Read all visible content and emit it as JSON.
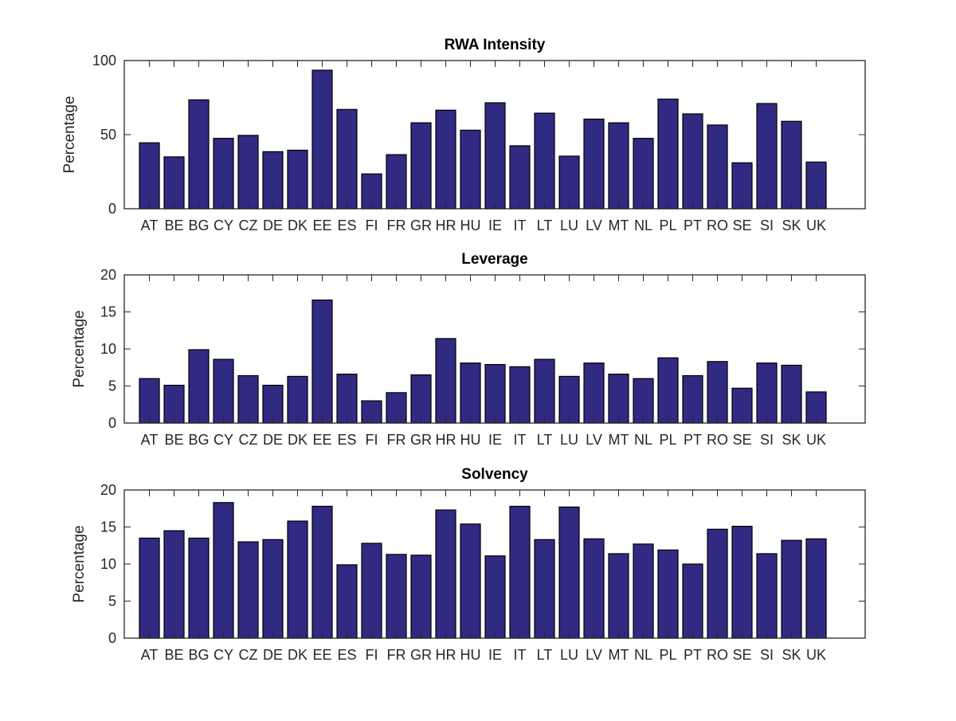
{
  "chart_data": [
    {
      "type": "bar",
      "title": "RWA Intensity",
      "ylabel": "Percentage",
      "xlabel": "",
      "ylim": [
        0,
        100
      ],
      "yticks": [
        0,
        50,
        100
      ],
      "categories": [
        "AT",
        "BE",
        "BG",
        "CY",
        "CZ",
        "DE",
        "DK",
        "EE",
        "ES",
        "FI",
        "FR",
        "GR",
        "HR",
        "HU",
        "IE",
        "IT",
        "LT",
        "LU",
        "LV",
        "MT",
        "NL",
        "PL",
        "PT",
        "RO",
        "SE",
        "SI",
        "SK",
        "UK"
      ],
      "values": [
        44.5,
        35,
        73.5,
        47.5,
        49.5,
        38.5,
        39.5,
        93.5,
        67,
        23.5,
        36.5,
        58,
        66.5,
        53,
        71.5,
        42.5,
        64.5,
        35.5,
        60.5,
        58,
        47.5,
        74,
        64,
        56.5,
        31,
        71,
        59,
        31.5
      ],
      "bar_color": "#312a82",
      "grid": false
    },
    {
      "type": "bar",
      "title": "Leverage",
      "ylabel": "Percentage",
      "xlabel": "",
      "ylim": [
        0,
        20
      ],
      "yticks": [
        0,
        5,
        10,
        15,
        20
      ],
      "categories": [
        "AT",
        "BE",
        "BG",
        "CY",
        "CZ",
        "DE",
        "DK",
        "EE",
        "ES",
        "FI",
        "FR",
        "GR",
        "HR",
        "HU",
        "IE",
        "IT",
        "LT",
        "LU",
        "LV",
        "MT",
        "NL",
        "PL",
        "PT",
        "RO",
        "SE",
        "SI",
        "SK",
        "UK"
      ],
      "values": [
        6.0,
        5.1,
        9.9,
        8.6,
        6.4,
        5.1,
        6.3,
        16.6,
        6.6,
        3.0,
        4.1,
        6.5,
        11.4,
        8.1,
        7.9,
        7.6,
        8.6,
        6.3,
        8.1,
        6.6,
        6.0,
        8.8,
        6.4,
        8.3,
        4.7,
        8.1,
        7.8,
        4.2
      ],
      "bar_color": "#312a82",
      "grid": false
    },
    {
      "type": "bar",
      "title": "Solvency",
      "ylabel": "Percentage",
      "xlabel": "",
      "ylim": [
        0,
        20
      ],
      "yticks": [
        0,
        5,
        10,
        15,
        20
      ],
      "categories": [
        "AT",
        "BE",
        "BG",
        "CY",
        "CZ",
        "DE",
        "DK",
        "EE",
        "ES",
        "FI",
        "FR",
        "GR",
        "HR",
        "HU",
        "IE",
        "IT",
        "LT",
        "LU",
        "LV",
        "MT",
        "NL",
        "PL",
        "PT",
        "RO",
        "SE",
        "SI",
        "SK",
        "UK"
      ],
      "values": [
        13.5,
        14.5,
        13.5,
        18.3,
        13.0,
        13.3,
        15.8,
        17.8,
        9.9,
        12.8,
        11.3,
        11.2,
        17.3,
        15.4,
        11.1,
        17.8,
        13.3,
        17.7,
        13.4,
        11.4,
        12.7,
        11.9,
        10.0,
        14.7,
        15.1,
        11.4,
        13.2,
        13.4
      ],
      "bar_color": "#312a82",
      "grid": false
    }
  ]
}
